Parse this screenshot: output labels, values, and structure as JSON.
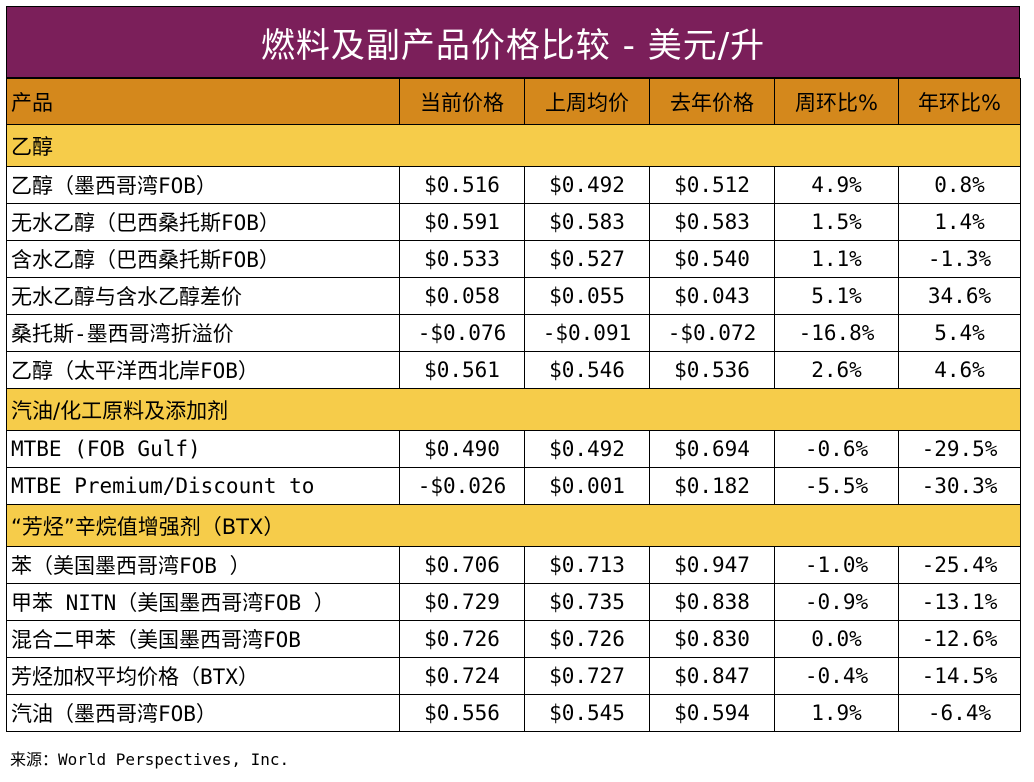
{
  "title": "燃料及副产品价格比较 - 美元/升",
  "headers": [
    "产品",
    "当前价格",
    "上周均价",
    "去年价格",
    "周环比%",
    "年环比%"
  ],
  "sections": [
    {
      "label": "乙醇",
      "rows": [
        [
          "乙醇（墨西哥湾FOB）",
          "$0.516",
          "$0.492",
          "$0.512",
          "4.9%",
          "0.8%"
        ],
        [
          "无水乙醇（巴西桑托斯FOB）",
          "$0.591",
          "$0.583",
          "$0.583",
          "1.5%",
          "1.4%"
        ],
        [
          "含水乙醇（巴西桑托斯FOB）",
          "$0.533",
          "$0.527",
          "$0.540",
          "1.1%",
          "-1.3%"
        ],
        [
          "无水乙醇与含水乙醇差价",
          "$0.058",
          "$0.055",
          "$0.043",
          "5.1%",
          "34.6%"
        ],
        [
          "桑托斯-墨西哥湾折溢价",
          "-$0.076",
          "-$0.091",
          "-$0.072",
          "-16.8%",
          "5.4%"
        ],
        [
          "乙醇（太平洋西北岸FOB）",
          "$0.561",
          "$0.546",
          "$0.536",
          "2.6%",
          "4.6%"
        ]
      ]
    },
    {
      "label": "汽油/化工原料及添加剂",
      "rows": [
        [
          "MTBE (FOB Gulf)",
          "$0.490",
          "$0.492",
          "$0.694",
          "-0.6%",
          "-29.5%"
        ],
        [
          "MTBE Premium/Discount to",
          "-$0.026",
          "$0.001",
          "$0.182",
          "-5.5%",
          "-30.3%"
        ]
      ]
    },
    {
      "label": "“芳烃”辛烷值增强剂（BTX）",
      "rows": [
        [
          "苯（美国墨西哥湾FOB ）",
          "$0.706",
          "$0.713",
          "$0.947",
          "-1.0%",
          "-25.4%"
        ],
        [
          "甲苯 NITN（美国墨西哥湾FOB ）",
          "$0.729",
          "$0.735",
          "$0.838",
          "-0.9%",
          "-13.1%"
        ],
        [
          "混合二甲苯（美国墨西哥湾FOB",
          "$0.726",
          "$0.726",
          "$0.830",
          "0.0%",
          "-12.6%"
        ],
        [
          "芳烃加权平均价格（BTX）",
          "$0.724",
          "$0.727",
          "$0.847",
          "-0.4%",
          "-14.5%"
        ],
        [
          "汽油（墨西哥湾FOB）",
          "$0.556",
          "$0.545",
          "$0.594",
          "1.9%",
          "-6.4%"
        ]
      ]
    }
  ],
  "source": "来源：World Perspectives, Inc.",
  "colors": {
    "title_bg": "#7b1f5a",
    "header_bg": "#d4881c",
    "section_bg": "#f6cc4a"
  }
}
